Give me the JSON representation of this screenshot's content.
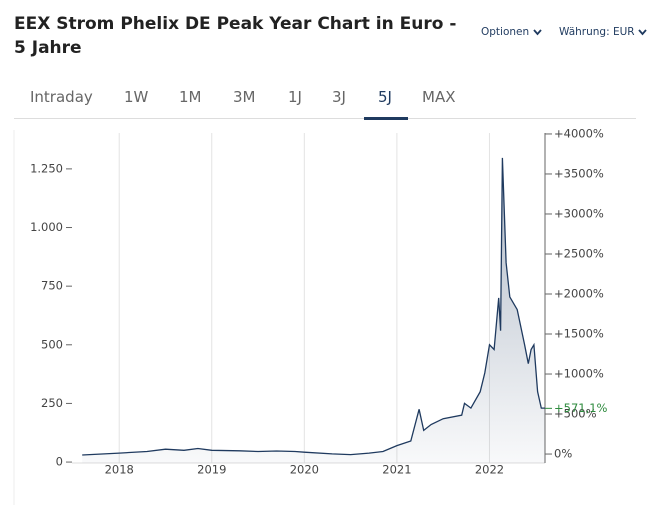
{
  "chart_data": {
    "type": "line",
    "title": "EEX Strom Phelix DE Peak Year Chart in Euro - 5 Jahre",
    "options": "Optionen",
    "currency": "Währung: EUR",
    "tabs": [
      "Intraday",
      "1W",
      "1M",
      "3M",
      "1J",
      "3J",
      "5J",
      "MAX"
    ],
    "selected_tab": "5J",
    "x": [
      2017.6,
      2018.0,
      2018.3,
      2018.5,
      2018.7,
      2018.85,
      2019.0,
      2019.3,
      2019.5,
      2019.7,
      2019.9,
      2020.0,
      2020.3,
      2020.5,
      2020.7,
      2020.85,
      2021.0,
      2021.15,
      2021.24,
      2021.29,
      2021.37,
      2021.5,
      2021.7,
      2021.73,
      2021.8,
      2021.9,
      2021.95,
      2022.0,
      2022.05,
      2022.1,
      2022.12,
      2022.14,
      2022.18,
      2022.22,
      2022.3,
      2022.38,
      2022.42,
      2022.45,
      2022.48,
      2022.52,
      2022.56,
      2022.6
    ],
    "values": [
      30,
      38,
      45,
      55,
      50,
      58,
      50,
      48,
      45,
      47,
      45,
      42,
      35,
      32,
      38,
      45,
      70,
      90,
      225,
      135,
      160,
      185,
      200,
      250,
      230,
      300,
      380,
      500,
      480,
      700,
      560,
      1297,
      850,
      704,
      650,
      500,
      420,
      480,
      500,
      300,
      230,
      230
    ],
    "color": "#1f3a5f",
    "xlim": [
      2017.49,
      2022.6
    ],
    "xticks": [
      2018,
      2019,
      2020,
      2021,
      2022
    ],
    "ylim": [
      -4,
      1403
    ],
    "yticks": [
      0,
      250,
      500,
      750,
      {
        "value": 1000,
        "label": "1.000"
      },
      {
        "value": 1250,
        "label": "1.250"
      }
    ],
    "y2lim": [
      -112,
      4012
    ],
    "y2ticks": [
      {
        "value": 0,
        "label": "0%"
      },
      {
        "value": 500,
        "label": "+500%"
      },
      {
        "value": 1000,
        "label": "+1000%"
      },
      {
        "value": 1500,
        "label": "+1500%"
      },
      {
        "value": 2000,
        "label": "+2000%"
      },
      {
        "value": 2500,
        "label": "+2500%"
      },
      {
        "value": 3000,
        "label": "+3000%"
      },
      {
        "value": 3500,
        "label": "+3500%"
      },
      {
        "value": 4000,
        "label": "+4000%"
      }
    ],
    "last_label": {
      "value": 571.1,
      "label": "+571,1%",
      "axis": "y2",
      "color": "#2e8b3e"
    },
    "xgrid": true
  }
}
